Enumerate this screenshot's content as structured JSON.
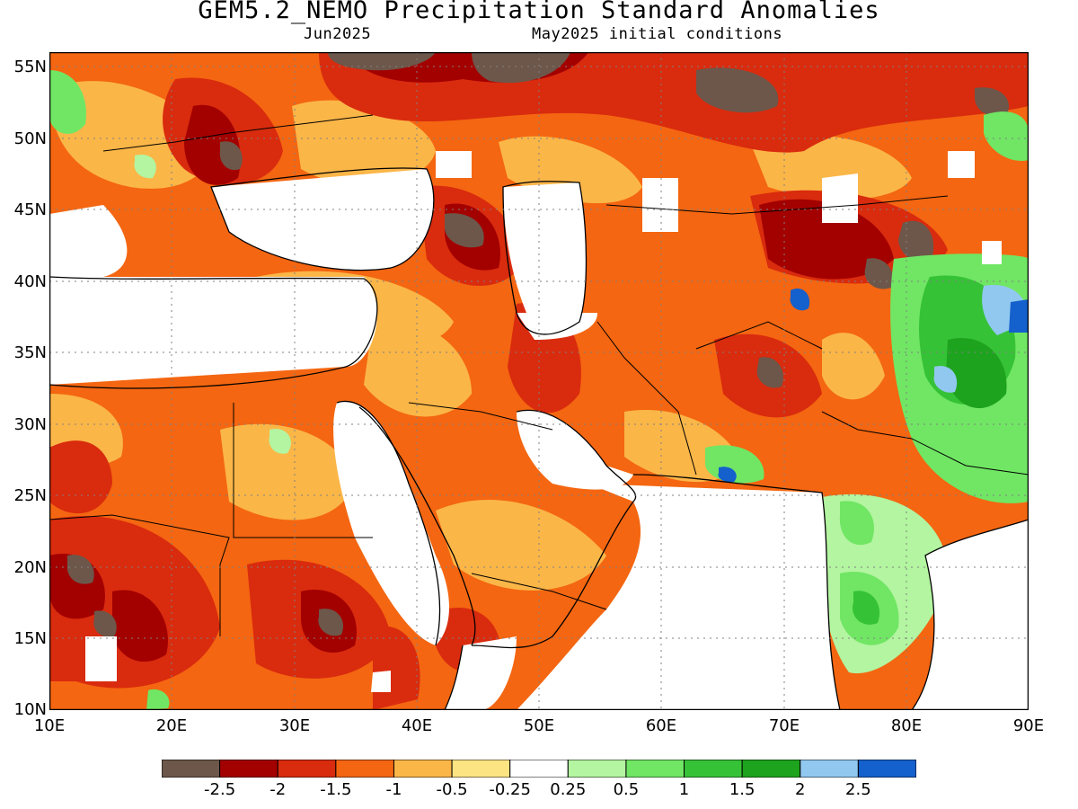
{
  "header": {
    "title": "GEM5.2_NEMO Precipitation Standard Anomalies",
    "target_month": "Jun2025",
    "init_note": "May2025 initial conditions"
  },
  "axes": {
    "lat_labels": [
      "55N",
      "50N",
      "45N",
      "40N",
      "35N",
      "30N",
      "25N",
      "20N",
      "15N",
      "10N"
    ],
    "lon_labels": [
      "10E",
      "20E",
      "30E",
      "40E",
      "50E",
      "60E",
      "70E",
      "80E",
      "90E"
    ],
    "lat_range": [
      10,
      56
    ],
    "lon_range": [
      10,
      90
    ]
  },
  "colorbar": {
    "bins": [
      {
        "color": "#6d574a"
      },
      {
        "color": "#a30000"
      },
      {
        "color": "#d92b0e"
      },
      {
        "color": "#f46611"
      },
      {
        "color": "#fbb648"
      },
      {
        "color": "#fde482"
      },
      {
        "color": "#ffffff"
      },
      {
        "color": "#b3f5a0"
      },
      {
        "color": "#70e664"
      },
      {
        "color": "#36c236"
      },
      {
        "color": "#1ea31e"
      },
      {
        "color": "#91c8f0"
      },
      {
        "color": "#1460cc"
      }
    ],
    "tick_labels": [
      "-2.5",
      "-2",
      "-1.5",
      "-1",
      "-0.5",
      "-0.25",
      "0.25",
      "0.5",
      "1",
      "1.5",
      "2",
      "2.5"
    ]
  },
  "anomaly_regions": [
    {
      "name": "northern-belt",
      "level": -1.5,
      "color": "#d92b0e"
    },
    {
      "name": "central-asia",
      "level": -1.0,
      "color": "#f46611"
    },
    {
      "name": "arabia",
      "level": -1.0,
      "color": "#f46611"
    },
    {
      "name": "sahara",
      "level": -1.0,
      "color": "#f46611"
    },
    {
      "name": "sahel",
      "level": -2.0,
      "color": "#a30000"
    },
    {
      "name": "india",
      "level": 1.0,
      "color": "#70e664"
    },
    {
      "name": "tibet",
      "level": 1.5,
      "color": "#36c236"
    }
  ]
}
